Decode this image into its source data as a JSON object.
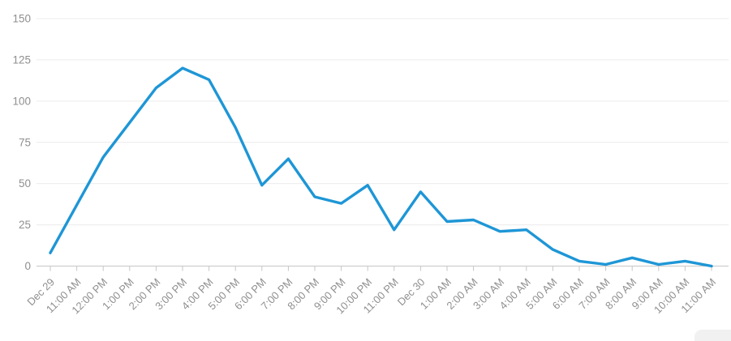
{
  "chart_data": {
    "type": "line",
    "title": "",
    "xlabel": "",
    "ylabel": "",
    "categories": [
      "Dec 29",
      "11:00 AM",
      "12:00 PM",
      "1:00 PM",
      "2:00 PM",
      "3:00 PM",
      "4:00 PM",
      "5:00 PM",
      "6:00 PM",
      "7:00 PM",
      "8:00 PM",
      "9:00 PM",
      "10:00 PM",
      "11:00 PM",
      "Dec 30",
      "1:00 AM",
      "2:00 AM",
      "3:00 AM",
      "4:00 AM",
      "5:00 AM",
      "6:00 AM",
      "7:00 AM",
      "8:00 AM",
      "9:00 AM",
      "10:00 AM",
      "11:00 AM"
    ],
    "values": [
      8,
      37,
      66,
      87,
      108,
      120,
      113,
      84,
      49,
      65,
      42,
      38,
      49,
      22,
      45,
      27,
      28,
      21,
      22,
      10,
      3,
      1,
      5,
      1,
      3,
      0
    ],
    "ylim": [
      0,
      150
    ],
    "yticks": [
      0,
      25,
      50,
      75,
      100,
      125,
      150
    ],
    "grid": "horizontal",
    "legend": "none",
    "colors": {
      "line": "#1e96d6",
      "grid": "#ececec",
      "axis": "#c6c6c6",
      "tick_label": "#8f8f8f"
    }
  }
}
